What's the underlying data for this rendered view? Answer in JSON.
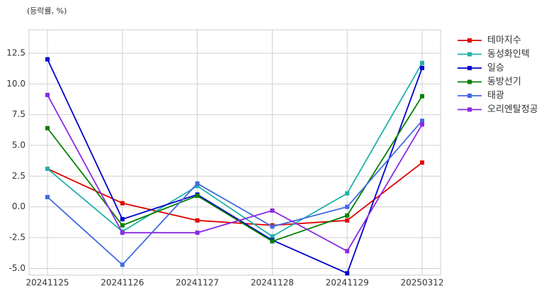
{
  "chart_data": {
    "type": "line",
    "subtitle": "(등락률, %)",
    "categories": [
      "20241125",
      "20241126",
      "20241127",
      "20241128",
      "20241129",
      "20250312"
    ],
    "series": [
      {
        "name": "테마지수",
        "color": "#e00000",
        "values": [
          3.1,
          0.3,
          -1.1,
          -1.5,
          -1.1,
          3.6
        ]
      },
      {
        "name": "동성화인텍",
        "color": "#20b2aa",
        "values": [
          3.1,
          -2.0,
          1.7,
          -2.4,
          1.1,
          11.7
        ]
      },
      {
        "name": "일승",
        "color": "#0000cd",
        "values": [
          12.0,
          -1.0,
          1.0,
          -2.7,
          -5.4,
          11.3
        ]
      },
      {
        "name": "동방선기",
        "color": "#008000",
        "values": [
          6.4,
          -1.5,
          0.9,
          -2.8,
          -0.7,
          9.0
        ]
      },
      {
        "name": "태광",
        "color": "#4169e1",
        "values": [
          0.8,
          -4.7,
          1.9,
          -1.6,
          0.0,
          7.0
        ]
      },
      {
        "name": "오리엔탈정공",
        "color": "#8a2be2",
        "values": [
          9.1,
          -2.1,
          -2.1,
          -0.3,
          -3.6,
          6.7
        ]
      }
    ],
    "ylim": [
      -5.55,
      14.4
    ],
    "yticks": [
      {
        "value": -5,
        "label": "-5.0"
      },
      -2.5,
      {
        "value": 0,
        "label": "0.0"
      },
      2.5,
      {
        "value": 5,
        "label": "5.0"
      },
      {
        "value": 7.5,
        "label": "7.5"
      },
      {
        "value": 10,
        "label": "10.0"
      },
      12.5
    ],
    "grid": true,
    "legend": "right"
  }
}
